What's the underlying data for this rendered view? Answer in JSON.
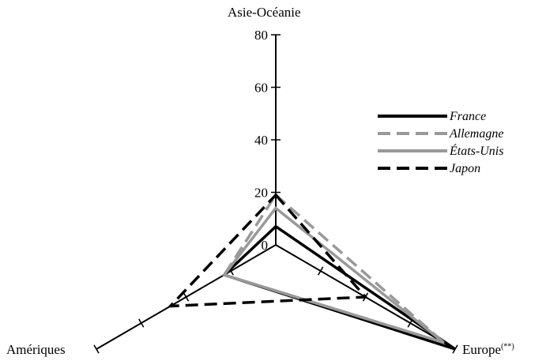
{
  "chart_data": {
    "type": "radar",
    "axes": [
      "Asie-Océanie",
      "Europe",
      "Amériques"
    ],
    "axis_labels": {
      "top": "Asie-Océanie",
      "right": "Europe",
      "right_note": "(**)",
      "left": "Amériques"
    },
    "rlim": [
      0,
      80
    ],
    "ticks": [
      0,
      20,
      40,
      60,
      80
    ],
    "tick_labels": [
      "0",
      "20",
      "40",
      "60",
      "80"
    ],
    "grid": false,
    "legend_position": "top-right",
    "series": [
      {
        "name": "France",
        "values": [
          7,
          80,
          23
        ],
        "color": "#000000",
        "dash": "solid"
      },
      {
        "name": "Allemagne",
        "values": [
          19,
          75,
          23
        ],
        "color": "#999999",
        "dash": "dashed"
      },
      {
        "name": "États-Unis",
        "values": [
          14,
          75,
          23
        ],
        "color": "#999999",
        "dash": "solid"
      },
      {
        "name": "Japon",
        "values": [
          19,
          40,
          47
        ],
        "color": "#000000",
        "dash": "dashed"
      }
    ]
  }
}
